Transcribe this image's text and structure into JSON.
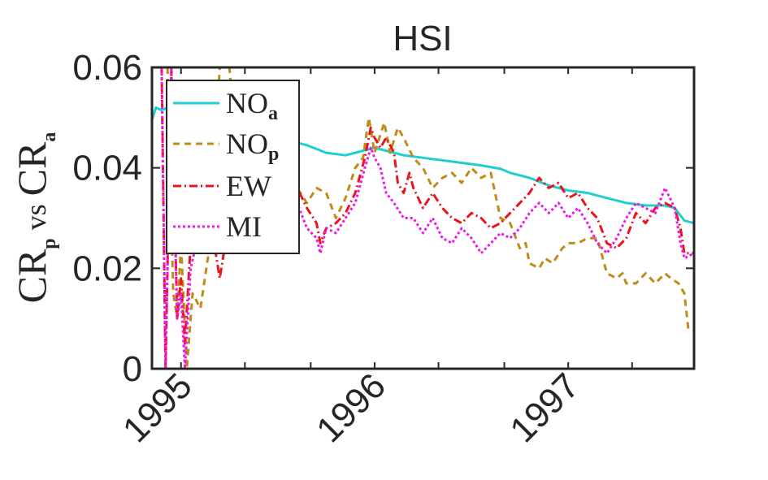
{
  "chart_data": {
    "type": "line",
    "title": "HSI",
    "ylabel": "CR_p vs CR_a",
    "ylabel_parts": {
      "cr1": "CR",
      "sub1": "p",
      "vs": "vs",
      "cr2": "CR",
      "sub2": "a"
    },
    "xlim": [
      1994.85,
      1997.65
    ],
    "ylim": [
      0,
      0.06
    ],
    "yticks": [
      "0",
      "0.02",
      "0.04",
      "0.06"
    ],
    "ytick_values": [
      0,
      0.02,
      0.04,
      0.06
    ],
    "xticks": [
      "1995",
      "1996",
      "1997"
    ],
    "xtick_values": [
      1995.0,
      1996.0,
      1997.0
    ],
    "x_minor_ticks": [
      1995.33,
      1995.67,
      1996.33,
      1996.67,
      1997.33
    ],
    "grid": false,
    "legend_position": "top-left",
    "series": [
      {
        "name": "NO_a",
        "label_main": "NO",
        "label_sub": "a",
        "color": "#1fcfcf",
        "dash": "none",
        "points": [
          [
            1994.85,
            0.0495
          ],
          [
            1994.87,
            0.052
          ],
          [
            1994.9,
            0.0515
          ],
          [
            1994.93,
            0.052
          ],
          [
            1994.97,
            0.05
          ],
          [
            1995.0,
            0.049
          ],
          [
            1995.1,
            0.047
          ],
          [
            1995.2,
            0.045
          ],
          [
            1995.3,
            0.044
          ],
          [
            1995.4,
            0.0435
          ],
          [
            1995.5,
            0.0445
          ],
          [
            1995.55,
            0.0455
          ],
          [
            1995.65,
            0.0445
          ],
          [
            1995.75,
            0.043
          ],
          [
            1995.85,
            0.0425
          ],
          [
            1995.95,
            0.0435
          ],
          [
            1996.0,
            0.044
          ],
          [
            1996.05,
            0.0435
          ],
          [
            1996.15,
            0.0425
          ],
          [
            1996.25,
            0.042
          ],
          [
            1996.35,
            0.0415
          ],
          [
            1996.45,
            0.041
          ],
          [
            1996.55,
            0.0405
          ],
          [
            1996.65,
            0.0398
          ],
          [
            1996.7,
            0.039
          ],
          [
            1996.8,
            0.038
          ],
          [
            1996.9,
            0.0365
          ],
          [
            1997.0,
            0.0355
          ],
          [
            1997.1,
            0.035
          ],
          [
            1997.2,
            0.034
          ],
          [
            1997.3,
            0.033
          ],
          [
            1997.4,
            0.0325
          ],
          [
            1997.5,
            0.0325
          ],
          [
            1997.55,
            0.032
          ],
          [
            1997.6,
            0.0295
          ],
          [
            1997.65,
            0.029
          ]
        ]
      },
      {
        "name": "NO_p",
        "label_main": "NO",
        "label_sub": "p",
        "color": "#bf8c1a",
        "dash": "8,6",
        "points": [
          [
            1994.93,
            0.06
          ],
          [
            1994.96,
            0.015
          ],
          [
            1994.98,
            0.01
          ],
          [
            1995.0,
            0.025
          ],
          [
            1995.03,
            0.0
          ],
          [
            1995.06,
            0.015
          ],
          [
            1995.1,
            0.012
          ],
          [
            1995.15,
            0.025
          ],
          [
            1995.2,
            0.06
          ],
          [
            1995.25,
            0.06
          ],
          [
            1995.28,
            0.045
          ],
          [
            1995.32,
            0.038
          ],
          [
            1995.36,
            0.042
          ],
          [
            1995.4,
            0.048
          ],
          [
            1995.45,
            0.049
          ],
          [
            1995.5,
            0.047
          ],
          [
            1995.55,
            0.044
          ],
          [
            1995.6,
            0.036
          ],
          [
            1995.65,
            0.033
          ],
          [
            1995.7,
            0.036
          ],
          [
            1995.75,
            0.035
          ],
          [
            1995.8,
            0.03
          ],
          [
            1995.85,
            0.034
          ],
          [
            1995.9,
            0.04
          ],
          [
            1995.94,
            0.042
          ],
          [
            1995.97,
            0.05
          ],
          [
            1996.0,
            0.043
          ],
          [
            1996.05,
            0.049
          ],
          [
            1996.08,
            0.043
          ],
          [
            1996.12,
            0.048
          ],
          [
            1996.15,
            0.046
          ],
          [
            1996.2,
            0.042
          ],
          [
            1996.25,
            0.04
          ],
          [
            1996.3,
            0.036
          ],
          [
            1996.35,
            0.038
          ],
          [
            1996.4,
            0.039
          ],
          [
            1996.45,
            0.037
          ],
          [
            1996.5,
            0.04
          ],
          [
            1996.55,
            0.038
          ],
          [
            1996.6,
            0.039
          ],
          [
            1996.65,
            0.03
          ],
          [
            1996.7,
            0.029
          ],
          [
            1996.75,
            0.024
          ],
          [
            1996.78,
            0.025
          ],
          [
            1996.8,
            0.021
          ],
          [
            1996.85,
            0.02
          ],
          [
            1996.88,
            0.022
          ],
          [
            1996.92,
            0.021
          ],
          [
            1996.97,
            0.024
          ],
          [
            1997.0,
            0.025
          ],
          [
            1997.05,
            0.025
          ],
          [
            1997.1,
            0.026
          ],
          [
            1997.15,
            0.026
          ],
          [
            1997.2,
            0.019
          ],
          [
            1997.25,
            0.018
          ],
          [
            1997.28,
            0.019
          ],
          [
            1997.3,
            0.017
          ],
          [
            1997.35,
            0.017
          ],
          [
            1997.4,
            0.019
          ],
          [
            1997.45,
            0.017
          ],
          [
            1997.5,
            0.019
          ],
          [
            1997.53,
            0.018
          ],
          [
            1997.57,
            0.017
          ],
          [
            1997.6,
            0.015
          ],
          [
            1997.62,
            0.008
          ],
          [
            1997.65,
            0.0075
          ]
        ]
      },
      {
        "name": "EW",
        "label_main": "EW",
        "label_sub": "",
        "color": "#e8141e",
        "dash": "10,4,2,4",
        "points": [
          [
            1994.9,
            0.06
          ],
          [
            1994.92,
            0.0
          ],
          [
            1994.95,
            0.06
          ],
          [
            1994.98,
            0.01
          ],
          [
            1995.0,
            0.018
          ],
          [
            1995.02,
            0.005
          ],
          [
            1995.05,
            0.025
          ],
          [
            1995.08,
            0.03
          ],
          [
            1995.1,
            0.035
          ],
          [
            1995.15,
            0.03
          ],
          [
            1995.2,
            0.018
          ],
          [
            1995.25,
            0.03
          ],
          [
            1995.3,
            0.035
          ],
          [
            1995.35,
            0.033
          ],
          [
            1995.4,
            0.037
          ],
          [
            1995.45,
            0.041
          ],
          [
            1995.5,
            0.037
          ],
          [
            1995.55,
            0.033
          ],
          [
            1995.6,
            0.036
          ],
          [
            1995.65,
            0.032
          ],
          [
            1995.7,
            0.029
          ],
          [
            1995.72,
            0.025
          ],
          [
            1995.75,
            0.028
          ],
          [
            1995.8,
            0.029
          ],
          [
            1995.85,
            0.031
          ],
          [
            1995.9,
            0.035
          ],
          [
            1995.95,
            0.042
          ],
          [
            1995.98,
            0.048
          ],
          [
            1996.0,
            0.046
          ],
          [
            1996.03,
            0.044
          ],
          [
            1996.06,
            0.046
          ],
          [
            1996.1,
            0.043
          ],
          [
            1996.12,
            0.037
          ],
          [
            1996.15,
            0.035
          ],
          [
            1996.18,
            0.039
          ],
          [
            1996.2,
            0.036
          ],
          [
            1996.25,
            0.032
          ],
          [
            1996.3,
            0.035
          ],
          [
            1996.35,
            0.032
          ],
          [
            1996.4,
            0.03
          ],
          [
            1996.45,
            0.029
          ],
          [
            1996.5,
            0.031
          ],
          [
            1996.55,
            0.03
          ],
          [
            1996.6,
            0.028
          ],
          [
            1996.65,
            0.029
          ],
          [
            1996.7,
            0.031
          ],
          [
            1996.75,
            0.033
          ],
          [
            1996.8,
            0.035
          ],
          [
            1996.85,
            0.038
          ],
          [
            1996.9,
            0.036
          ],
          [
            1996.95,
            0.037
          ],
          [
            1997.0,
            0.034
          ],
          [
            1997.05,
            0.035
          ],
          [
            1997.1,
            0.032
          ],
          [
            1997.15,
            0.03
          ],
          [
            1997.2,
            0.025
          ],
          [
            1997.25,
            0.024
          ],
          [
            1997.3,
            0.026
          ],
          [
            1997.35,
            0.031
          ],
          [
            1997.4,
            0.029
          ],
          [
            1997.45,
            0.032
          ],
          [
            1997.5,
            0.033
          ],
          [
            1997.55,
            0.032
          ],
          [
            1997.58,
            0.028
          ],
          [
            1997.6,
            0.023
          ],
          [
            1997.65,
            0.023
          ]
        ]
      },
      {
        "name": "MI",
        "label_main": "MI",
        "label_sub": "",
        "color": "#ee18ee",
        "dash": "3,3",
        "points": [
          [
            1994.9,
            0.06
          ],
          [
            1994.92,
            0.0
          ],
          [
            1994.95,
            0.06
          ],
          [
            1994.98,
            0.01
          ],
          [
            1995.0,
            0.015
          ],
          [
            1995.02,
            0.0
          ],
          [
            1995.05,
            0.02
          ],
          [
            1995.08,
            0.025
          ],
          [
            1995.12,
            0.028
          ],
          [
            1995.2,
            0.025
          ],
          [
            1995.25,
            0.03
          ],
          [
            1995.3,
            0.038
          ],
          [
            1995.35,
            0.04
          ],
          [
            1995.4,
            0.036
          ],
          [
            1995.45,
            0.034
          ],
          [
            1995.5,
            0.034
          ],
          [
            1995.55,
            0.03
          ],
          [
            1995.6,
            0.033
          ],
          [
            1995.65,
            0.028
          ],
          [
            1995.7,
            0.026
          ],
          [
            1995.72,
            0.023
          ],
          [
            1995.75,
            0.028
          ],
          [
            1995.8,
            0.027
          ],
          [
            1995.85,
            0.03
          ],
          [
            1995.9,
            0.033
          ],
          [
            1995.95,
            0.04
          ],
          [
            1995.98,
            0.044
          ],
          [
            1996.0,
            0.042
          ],
          [
            1996.03,
            0.04
          ],
          [
            1996.06,
            0.035
          ],
          [
            1996.1,
            0.033
          ],
          [
            1996.15,
            0.03
          ],
          [
            1996.2,
            0.03
          ],
          [
            1996.25,
            0.027
          ],
          [
            1996.3,
            0.03
          ],
          [
            1996.35,
            0.026
          ],
          [
            1996.4,
            0.025
          ],
          [
            1996.45,
            0.028
          ],
          [
            1996.5,
            0.026
          ],
          [
            1996.55,
            0.023
          ],
          [
            1996.6,
            0.025
          ],
          [
            1996.65,
            0.027
          ],
          [
            1996.7,
            0.026
          ],
          [
            1996.75,
            0.028
          ],
          [
            1996.8,
            0.031
          ],
          [
            1996.85,
            0.033
          ],
          [
            1996.9,
            0.031
          ],
          [
            1996.95,
            0.033
          ],
          [
            1997.0,
            0.03
          ],
          [
            1997.05,
            0.032
          ],
          [
            1997.1,
            0.029
          ],
          [
            1997.15,
            0.025
          ],
          [
            1997.2,
            0.023
          ],
          [
            1997.25,
            0.026
          ],
          [
            1997.3,
            0.03
          ],
          [
            1997.35,
            0.033
          ],
          [
            1997.4,
            0.032
          ],
          [
            1997.45,
            0.031
          ],
          [
            1997.5,
            0.036
          ],
          [
            1997.55,
            0.032
          ],
          [
            1997.58,
            0.025
          ],
          [
            1997.6,
            0.022
          ],
          [
            1997.65,
            0.023
          ]
        ]
      }
    ]
  }
}
